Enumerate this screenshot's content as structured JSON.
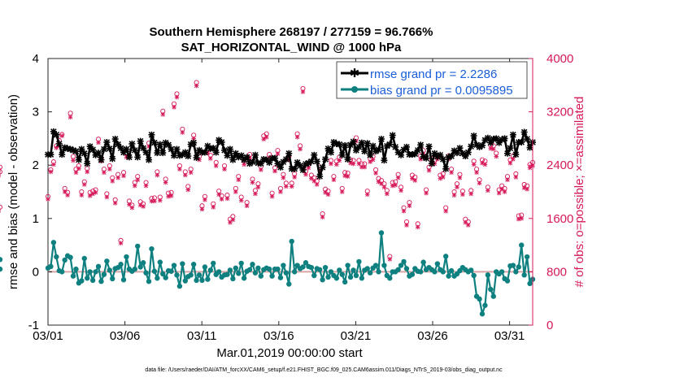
{
  "colors": {
    "rmse": "#000000",
    "bias": "#0f8080",
    "obs": "#d6185a",
    "zero_line": "#d9a3a3",
    "legend_text": "#1a5fd8"
  },
  "chart_data": {
    "type": "line",
    "title_line1": "Southern Hemisphere 268197 / 277159 = 96.766%",
    "title_line2": "SAT_HORIZONTAL_WIND @ 1000 hPa",
    "xlabel": "Mar.01,2019 00:00:00 start",
    "ylabel_left": "rmse and bias (model - observation)",
    "ylabel_right": "# of obs: o=possible; ×=assimilated",
    "footnote": "data file: /Users/raeder/DAI/ATM_forcXX/CAM6_setup/f.e21.FHIST_BGC.f09_025.CAM6assim.011/Diags_NTrS_2019-03/obs_diag_output.nc",
    "x_range": [
      1,
      32.5
    ],
    "xticks": [
      1,
      6,
      11,
      16,
      21,
      26,
      31
    ],
    "xtick_labels": [
      "03/01",
      "03/06",
      "03/11",
      "03/16",
      "03/21",
      "03/26",
      "03/31"
    ],
    "ylim_left": [
      -1,
      4
    ],
    "yticks_left": [
      "-1",
      "0",
      "1",
      "2",
      "3",
      "4"
    ],
    "ylim_right": [
      0,
      4000
    ],
    "yticks_right": [
      "0",
      "800",
      "1600",
      "2400",
      "3200",
      "4000"
    ],
    "legend": {
      "position": "top-right",
      "entries": [
        "rmse grand pr = 2.2286",
        "bias grand pr = 0.0095895"
      ]
    },
    "series": [
      {
        "name": "rmse",
        "values": [
          2.2,
          2.2,
          2.63,
          2.57,
          2.4,
          2.2,
          2.33,
          2.31,
          2.3,
          2.28,
          2.26,
          2.1,
          2.3,
          2.22,
          2.03,
          2.35,
          2.29,
          2.19,
          2.23,
          2.1,
          2.3,
          2.43,
          2.31,
          2.12,
          2.49,
          2.39,
          2.32,
          2.24,
          2.3,
          2.15,
          2.4,
          2.28,
          2.15,
          2.45,
          2.32,
          2.24,
          2.1,
          2.57,
          2.42,
          2.23,
          2.39,
          2.23,
          2.42,
          2.38,
          2.3,
          2.18,
          2.3,
          2.18,
          2.2,
          2.24,
          2.17,
          2.39,
          2.42,
          2.14,
          2.28,
          2.24,
          2.24,
          2.36,
          2.31,
          2.32,
          2.24,
          2.47,
          2.43,
          2.28,
          2.18,
          2.3,
          2.1,
          2.22,
          2.15,
          2.18,
          2.1,
          2.15,
          2.03,
          2.06,
          2.19,
          2.04,
          2.03,
          2.11,
          2.1,
          2.05,
          2.13,
          2.13,
          2.03,
          1.96,
          2.06,
          2.11,
          2.22,
          1.93,
          1.93,
          2.05,
          1.99,
          1.91,
          2.02,
          2.04,
          2.07,
          2.19,
          2.07,
          1.79,
          1.96,
          2.11,
          2.31,
          2.24,
          2.43,
          2.4,
          2.39,
          2.19,
          2.37,
          2.11,
          2.38,
          2.44,
          2.28,
          2.34,
          2.42,
          2.26,
          2.41,
          2.19,
          2.36,
          2.26,
          2.29,
          2.49,
          2.09,
          2.36,
          2.39,
          2.56,
          2.34,
          2.24,
          2.19,
          2.29,
          2.34,
          2.2,
          2.2,
          2.21,
          2.28,
          2.38,
          2.16,
          2.13,
          2.35,
          2.03,
          2.22,
          2.16,
          2.19,
          2.11,
          1.93,
          2.15,
          2.17,
          2.27,
          2.23,
          2.32,
          2.22,
          2.17,
          2.24,
          2.35,
          2.55,
          2.38,
          2.34,
          2.37,
          2.47,
          2.51,
          2.42,
          2.49,
          2.5,
          2.42,
          2.48,
          2.5,
          2.22,
          2.32,
          2.57,
          2.2,
          2.43,
          2.43,
          2.62,
          2.49,
          2.33,
          2.43
        ]
      },
      {
        "name": "bias",
        "values": [
          0.07,
          0.1,
          0.55,
          0.28,
          0.02,
          0.0,
          0.22,
          0.3,
          0.27,
          -0.08,
          0.05,
          -0.21,
          -0.17,
          0.25,
          -0.12,
          0.0,
          -0.16,
          0.0,
          0.1,
          -0.18,
          -0.05,
          0.2,
          0.03,
          -0.13,
          0.06,
          0.08,
          0.14,
          -0.15,
          0.28,
          0.05,
          0.01,
          0.05,
          0.48,
          0.09,
          0.17,
          -0.02,
          -0.18,
          0.43,
          0.01,
          -0.12,
          0.18,
          -0.04,
          -0.11,
          0.02,
          0.01,
          0.12,
          -0.06,
          -0.27,
          0.15,
          -0.17,
          -0.09,
          -0.06,
          0.14,
          -0.16,
          -0.06,
          -0.16,
          0.09,
          -0.14,
          0.03,
          0.16,
          -0.05,
          0.0,
          -0.1,
          -0.06,
          -0.05,
          0.03,
          -0.13,
          0.07,
          -0.03,
          0.16,
          -0.12,
          0.01,
          0.04,
          0.14,
          -0.02,
          0.07,
          -0.08,
          0.04,
          0.07,
          0.05,
          -0.08,
          0.05,
          0.05,
          -0.11,
          0.12,
          -0.02,
          -0.23,
          0.57,
          0.0,
          0.12,
          0.06,
          0.09,
          0.17,
          0.1,
          0.08,
          -0.07,
          0.06,
          0.04,
          -0.15,
          0.08,
          -0.1,
          0.0,
          -0.07,
          -0.12,
          0.03,
          -0.05,
          -0.19,
          0.12,
          -0.1,
          0.03,
          -0.07,
          0.19,
          -0.12,
          0.03,
          0.06,
          -0.02,
          0.07,
          0.12,
          0.0,
          0.73,
          0.12,
          -0.07,
          -0.12,
          0.0,
          0.0,
          0.04,
          0.12,
          0.19,
          0.06,
          -0.08,
          -0.05,
          0.06,
          0.01,
          0.0,
          0.18,
          0.04,
          0.08,
          0.04,
          0.0,
          0.15,
          0.04,
          0.0,
          0.29,
          -0.08,
          0.02,
          -0.08,
          -0.04,
          0.02,
          0.08,
          0.04,
          0.0,
          0.03,
          -0.07,
          -0.46,
          -0.51,
          -0.79,
          -0.63,
          -0.06,
          -0.33,
          -0.46,
          0.0,
          -0.04,
          0.0,
          -0.13,
          -0.17,
          0.11,
          0.12,
          0.0,
          0.09,
          0.5,
          -0.06,
          0.28,
          -0.22,
          -0.14,
          0.05,
          0.23
        ]
      },
      {
        "name": "obs_possible",
        "values": [
          1930,
          2330,
          2450,
          2690,
          2770,
          2860,
          2050,
          1990,
          3180,
          2530,
          2340,
          2390,
          2000,
          2150,
          2350,
          1990,
          2010,
          2030,
          2790,
          2510,
          2340,
          1970,
          2390,
          2210,
          1880,
          2260,
          1270,
          2290,
          2570,
          1860,
          1800,
          2140,
          2230,
          1850,
          1820,
          2140,
          2730,
          1900,
          1910,
          2300,
          1920,
          3210,
          2190,
          1980,
          1990,
          3320,
          3470,
          2390,
          2940,
          2300,
          2080,
          2340,
          2850,
          3640,
          2530,
          1790,
          1930,
          2630,
          2550,
          1820,
          2440,
          2010,
          1940,
          2390,
          1950,
          1590,
          1630,
          2050,
          2230,
          1920,
          2460,
          1840,
          2560,
          2190,
          2020,
          2120,
          2380,
          2840,
          2870,
          2560,
          1980,
          2360,
          2620,
          2050,
          2260,
          2130,
          2530,
          2130,
          2270,
          2870,
          2690,
          3550,
          2310,
          2410,
          2250,
          2210,
          2160,
          2370,
          1670,
          2040,
          2010,
          2470,
          2230,
          2460,
          2520,
          2050,
          2290,
          2280,
          2480,
          2470,
          2810,
          2470,
          2420,
          2420,
          2010,
          2500,
          2530,
          2330,
          2200,
          2170,
          2120,
          2020,
          1030,
          2140,
          2150,
          2260,
          2070,
          1760,
          1550,
          1840,
          2250,
          2220,
          1520,
          2540,
          2620,
          2030,
          2370,
          2500,
          2470,
          2540,
          2250,
          2270,
          1760,
          2540,
          2340,
          2000,
          2120,
          2260,
          2010,
          1590,
          1550,
          2020,
          2460,
          2340,
          2180,
          2480,
          2460,
          2070,
          2700,
          2690,
          2580,
          2030,
          2090,
          2050,
          2230,
          2480,
          2540,
          2270,
          1640,
          1650,
          2110,
          2090,
          2410,
          2440,
          2370,
          2300,
          1770
        ]
      },
      {
        "name": "obs_assimilated",
        "values": [
          1890,
          2300,
          2410,
          2660,
          2700,
          2840,
          2000,
          1950,
          3120,
          2470,
          2290,
          2350,
          1950,
          2110,
          2300,
          1940,
          1970,
          1990,
          2740,
          2460,
          2290,
          1920,
          2340,
          2160,
          1830,
          2210,
          1230,
          2240,
          2520,
          1810,
          1760,
          2090,
          2180,
          1800,
          1780,
          2090,
          2680,
          1860,
          1860,
          2250,
          1870,
          3160,
          2140,
          1930,
          1940,
          3270,
          3420,
          2340,
          2890,
          2250,
          2030,
          2290,
          2800,
          3590,
          2480,
          1740,
          1880,
          2580,
          2500,
          1770,
          2390,
          1960,
          1890,
          2340,
          1900,
          1540,
          1580,
          2000,
          2180,
          1870,
          2410,
          1790,
          2510,
          2140,
          1970,
          2070,
          2330,
          2790,
          2820,
          2510,
          1930,
          2310,
          2570,
          2000,
          2210,
          2080,
          2480,
          2080,
          2220,
          2820,
          2640,
          3500,
          2260,
          2360,
          2200,
          2160,
          2110,
          2320,
          1620,
          1990,
          1960,
          2420,
          2180,
          2410,
          2470,
          2000,
          2240,
          2230,
          2430,
          2420,
          2760,
          2420,
          2370,
          2370,
          1960,
          2450,
          2480,
          2280,
          2150,
          2120,
          2070,
          1970,
          990,
          2090,
          2100,
          2210,
          2020,
          1710,
          1500,
          1790,
          2200,
          2170,
          1470,
          2490,
          2570,
          1980,
          2320,
          2450,
          2420,
          2490,
          2200,
          2220,
          1710,
          2490,
          2290,
          1950,
          2070,
          2210,
          1960,
          1540,
          1500,
          1970,
          2410,
          2290,
          2130,
          2430,
          2410,
          2020,
          2650,
          2640,
          2530,
          1980,
          2040,
          2000,
          2180,
          2430,
          2490,
          2220,
          1590,
          1600,
          2060,
          2040,
          2360,
          2390,
          2320,
          2250,
          1720
        ]
      }
    ]
  }
}
